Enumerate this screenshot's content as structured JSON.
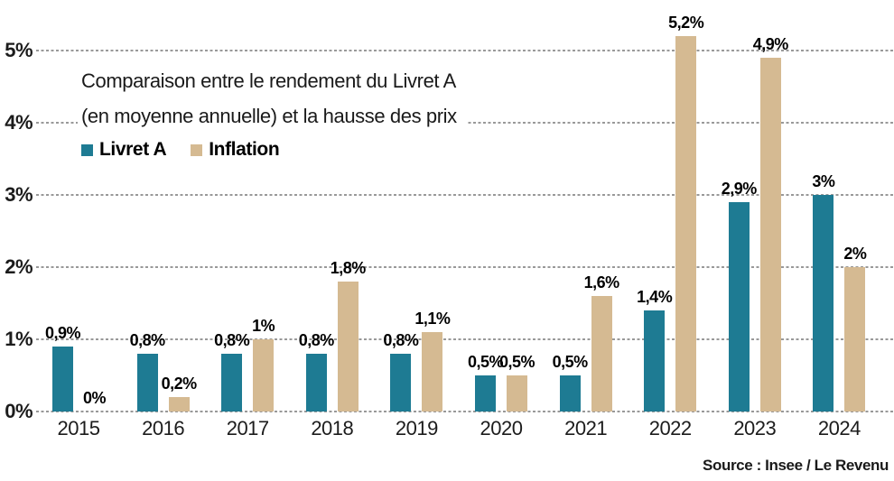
{
  "chart": {
    "title_line1": "Comparaison entre le rendement du Livret A",
    "title_line2": "(en moyenne annuelle) et la hausse des prix",
    "source": "Source : Insee / Le Revenu",
    "colors": {
      "livret_a": "#1e7b93",
      "inflation": "#d5ba92",
      "gridline": "#999999",
      "text": "#111111"
    }
  },
  "chart_data": {
    "type": "bar",
    "title": "Comparaison entre le rendement du Livret A (en moyenne annuelle) et la hausse des prix",
    "categories": [
      "2015",
      "2016",
      "2017",
      "2018",
      "2019",
      "2020",
      "2021",
      "2022",
      "2023",
      "2024"
    ],
    "series": [
      {
        "name": "Livret A",
        "color": "#1e7b93",
        "values": [
          0.9,
          0.8,
          0.8,
          0.8,
          0.8,
          0.5,
          0.5,
          1.4,
          2.9,
          3.0
        ],
        "labels": [
          "0,9%",
          "0,8%",
          "0,8%",
          "0,8%",
          "0,8%",
          "0,5%",
          "0,5%",
          "1,4%",
          "2,9%",
          "3%"
        ]
      },
      {
        "name": "Inflation",
        "color": "#d5ba92",
        "values": [
          0.0,
          0.2,
          1.0,
          1.8,
          1.1,
          0.5,
          1.6,
          5.2,
          4.9,
          2.0
        ],
        "labels": [
          "0%",
          "0,2%",
          "1%",
          "1,8%",
          "1,1%",
          "0,5%",
          "1,6%",
          "5,2%",
          "4,9%",
          "2%"
        ]
      }
    ],
    "yticks": [
      "0%",
      "1%",
      "2%",
      "3%",
      "4%",
      "5%"
    ],
    "ylim": [
      0,
      5
    ],
    "xlabel": "",
    "ylabel": "",
    "grid": "horizontal-dotted",
    "legend_position": "top-left-under-title",
    "source": "Source : Insee / Le Revenu"
  }
}
